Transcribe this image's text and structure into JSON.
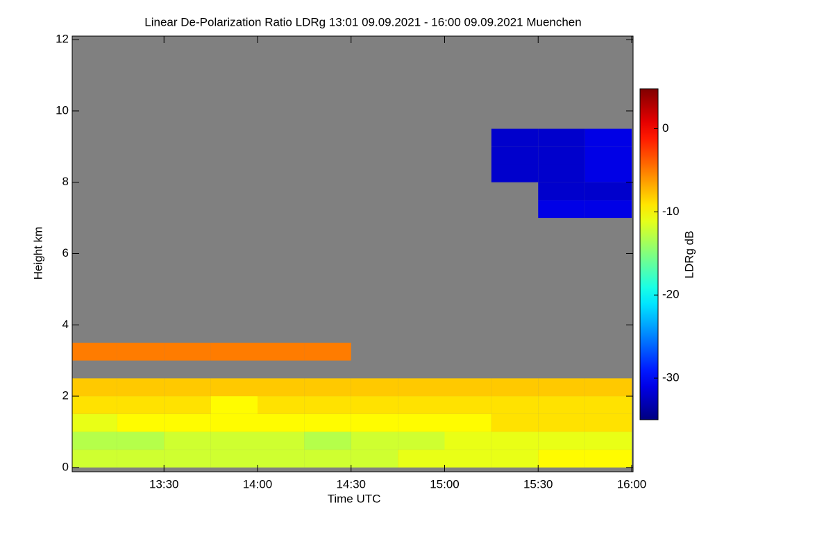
{
  "chart_data": {
    "type": "heatmap",
    "title": "Linear De-Polarization Ratio LDRg   13:01 09.09.2021 - 16:00 09.09.2021 Muenchen",
    "x_label": "Time UTC",
    "y_label": "Height km",
    "colorbar_label": "LDRg dB",
    "xlim": [
      781,
      960
    ],
    "xticks": [
      {
        "value": 810,
        "label": "13:30"
      },
      {
        "value": 840,
        "label": "14:00"
      },
      {
        "value": 870,
        "label": "14:30"
      },
      {
        "value": 900,
        "label": "15:00"
      },
      {
        "value": 930,
        "label": "15:30"
      },
      {
        "value": 960,
        "label": "16:00"
      }
    ],
    "ylim": [
      -0.12,
      12.1
    ],
    "yticks": [
      0,
      2,
      4,
      6,
      8,
      10,
      12
    ],
    "zlim": [
      -35,
      4.8
    ],
    "zticks": [
      0,
      -10,
      -20,
      -30
    ],
    "colormap": "jet",
    "missing_color": "#808080",
    "xbins": [
      780,
      795,
      810,
      825,
      840,
      855,
      870,
      885,
      900,
      915,
      930,
      945,
      960
    ],
    "ybins": [
      0,
      0.5,
      1,
      1.5,
      2,
      2.5,
      3,
      3.5,
      4,
      4.5,
      5,
      5.5,
      6,
      6.5,
      7,
      7.5,
      8,
      8.5,
      9,
      9.5,
      10,
      10.5,
      11,
      11.5,
      12
    ],
    "z": [
      [
        -12,
        -12,
        -12,
        -12,
        -12,
        -12,
        -12,
        -11,
        -11,
        -11,
        -10,
        -10
      ],
      [
        -13,
        -13,
        -12,
        -12,
        -12,
        -13,
        -12,
        -12,
        -11,
        -11,
        -11,
        -11
      ],
      [
        -11,
        -10,
        -10,
        -10,
        -10,
        -10,
        -10,
        -10,
        -10,
        -9,
        -9,
        -9
      ],
      [
        -9,
        -9,
        -9,
        -10,
        -9,
        -9,
        -9,
        -9,
        -9,
        -9,
        -9,
        -9
      ],
      [
        -8,
        -8,
        -8,
        -8,
        -8,
        -8,
        -8,
        -8,
        -8,
        -8,
        -8,
        -8
      ],
      [
        null,
        null,
        null,
        null,
        null,
        null,
        null,
        null,
        null,
        null,
        null,
        null
      ],
      [
        -5,
        -5,
        -5,
        -5,
        -5,
        -5,
        null,
        null,
        null,
        null,
        null,
        null
      ],
      [
        null,
        null,
        null,
        null,
        null,
        null,
        null,
        null,
        null,
        null,
        null,
        null
      ],
      [
        null,
        null,
        null,
        null,
        null,
        null,
        null,
        null,
        null,
        null,
        null,
        null
      ],
      [
        null,
        null,
        null,
        null,
        null,
        null,
        null,
        null,
        null,
        null,
        null,
        null
      ],
      [
        null,
        null,
        null,
        null,
        null,
        null,
        null,
        null,
        null,
        null,
        null,
        null
      ],
      [
        null,
        null,
        null,
        null,
        null,
        null,
        null,
        null,
        null,
        null,
        null,
        null
      ],
      [
        null,
        null,
        null,
        null,
        null,
        null,
        null,
        null,
        null,
        null,
        null,
        null
      ],
      [
        null,
        null,
        null,
        null,
        null,
        null,
        null,
        null,
        null,
        null,
        null,
        null
      ],
      [
        null,
        null,
        null,
        null,
        null,
        null,
        null,
        null,
        null,
        null,
        -31,
        -31
      ],
      [
        null,
        null,
        null,
        null,
        null,
        null,
        null,
        null,
        null,
        null,
        -32,
        -32
      ],
      [
        null,
        null,
        null,
        null,
        null,
        null,
        null,
        null,
        null,
        -32,
        -32,
        -31
      ],
      [
        null,
        null,
        null,
        null,
        null,
        null,
        null,
        null,
        null,
        -32,
        -32,
        -31
      ],
      [
        null,
        null,
        null,
        null,
        null,
        null,
        null,
        null,
        null,
        -32,
        -32,
        -31
      ],
      [
        null,
        null,
        null,
        null,
        null,
        null,
        null,
        null,
        null,
        null,
        null,
        null
      ],
      [
        null,
        null,
        null,
        null,
        null,
        null,
        null,
        null,
        null,
        null,
        null,
        null
      ],
      [
        null,
        null,
        null,
        null,
        null,
        null,
        null,
        null,
        null,
        null,
        null,
        null
      ],
      [
        null,
        null,
        null,
        null,
        null,
        null,
        null,
        null,
        null,
        null,
        null,
        null
      ],
      [
        null,
        null,
        null,
        null,
        null,
        null,
        null,
        null,
        null,
        null,
        null,
        null
      ]
    ]
  }
}
